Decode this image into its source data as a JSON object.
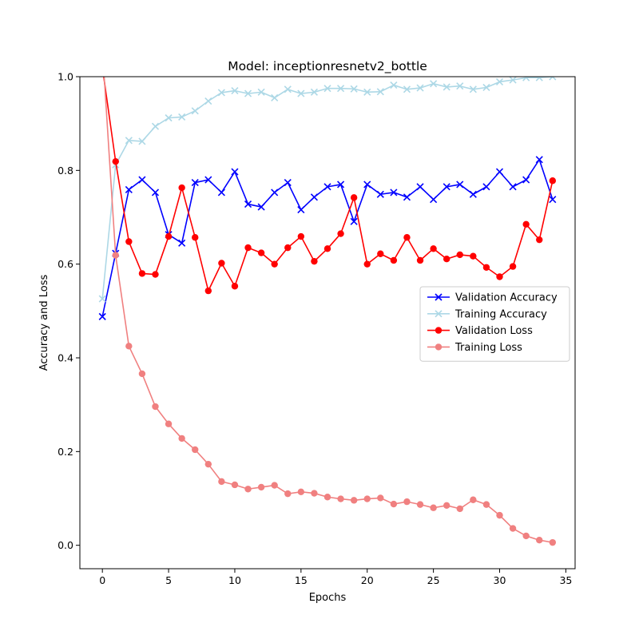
{
  "chart_data": {
    "type": "line",
    "title": "Model: inceptionresnetv2_bottle",
    "xlabel": "Epochs",
    "ylabel": "Accuracy and Loss",
    "xlim": [
      -1.7,
      35.7
    ],
    "ylim": [
      -0.05,
      1.0
    ],
    "xticks": [
      0,
      5,
      10,
      15,
      20,
      25,
      30,
      35
    ],
    "yticks": [
      0.0,
      0.2,
      0.4,
      0.6,
      0.8,
      1.0
    ],
    "xtick_labels": [
      "0",
      "5",
      "10",
      "15",
      "20",
      "25",
      "30",
      "35"
    ],
    "ytick_labels": [
      "0.0",
      "0.2",
      "0.4",
      "0.6",
      "0.8",
      "1.0"
    ],
    "grid": false,
    "legend_position": "center-right",
    "x": [
      0,
      1,
      2,
      3,
      4,
      5,
      6,
      7,
      8,
      9,
      10,
      11,
      12,
      13,
      14,
      15,
      16,
      17,
      18,
      19,
      20,
      21,
      22,
      23,
      24,
      25,
      26,
      27,
      28,
      29,
      30,
      31,
      32,
      33,
      34
    ],
    "series": [
      {
        "name": "Validation Accuracy",
        "color": "#0000ff",
        "marker": "x",
        "values": [
          0.488,
          0.623,
          0.759,
          0.78,
          0.753,
          0.663,
          0.645,
          0.774,
          0.78,
          0.753,
          0.797,
          0.728,
          0.722,
          0.753,
          0.774,
          0.716,
          0.743,
          0.765,
          0.77,
          0.691,
          0.77,
          0.749,
          0.753,
          0.743,
          0.765,
          0.738,
          0.765,
          0.77,
          0.749,
          0.765,
          0.797,
          0.765,
          0.78,
          0.823,
          0.738
        ]
      },
      {
        "name": "Training Accuracy",
        "color": "#add8e6",
        "marker": "x",
        "values": [
          0.526,
          0.812,
          0.864,
          0.862,
          0.894,
          0.912,
          0.914,
          0.927,
          0.948,
          0.966,
          0.97,
          0.964,
          0.967,
          0.955,
          0.973,
          0.964,
          0.967,
          0.975,
          0.975,
          0.974,
          0.967,
          0.968,
          0.982,
          0.973,
          0.976,
          0.985,
          0.978,
          0.98,
          0.973,
          0.977,
          0.989,
          0.993,
          0.998,
          0.998,
          1.0
        ]
      },
      {
        "name": "Validation Loss",
        "color": "#ff0000",
        "marker": "o",
        "values": [
          1.02,
          0.819,
          0.648,
          0.58,
          0.578,
          0.659,
          0.763,
          0.657,
          0.543,
          0.602,
          0.553,
          0.635,
          0.624,
          0.6,
          0.635,
          0.659,
          0.606,
          0.633,
          0.665,
          0.742,
          0.6,
          0.622,
          0.608,
          0.657,
          0.608,
          0.633,
          0.611,
          0.62,
          0.617,
          0.593,
          0.573,
          0.595,
          0.685,
          0.652,
          0.778
        ]
      },
      {
        "name": "Training Loss",
        "color": "#f08080",
        "marker": "o",
        "values": [
          1.06,
          0.619,
          0.425,
          0.366,
          0.296,
          0.259,
          0.228,
          0.204,
          0.173,
          0.136,
          0.129,
          0.12,
          0.124,
          0.128,
          0.11,
          0.114,
          0.111,
          0.103,
          0.099,
          0.096,
          0.099,
          0.101,
          0.088,
          0.093,
          0.087,
          0.08,
          0.085,
          0.078,
          0.097,
          0.087,
          0.064,
          0.036,
          0.02,
          0.011,
          0.006
        ]
      }
    ]
  }
}
